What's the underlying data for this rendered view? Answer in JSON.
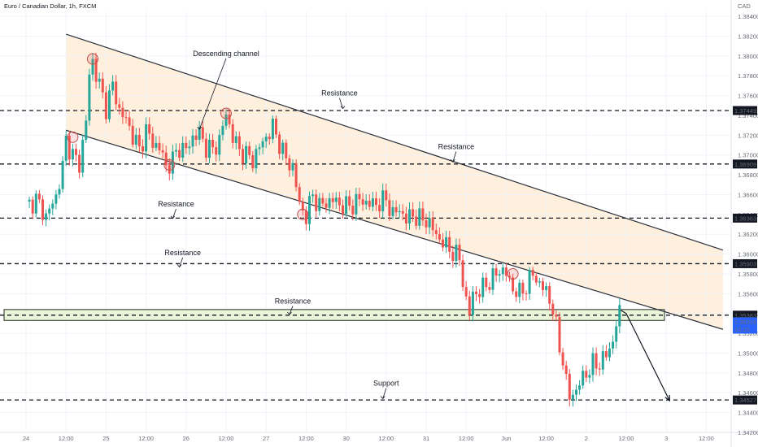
{
  "window": {
    "title": "Euro / Canadian Dollar, 1h, FXCM",
    "currency": "CAD"
  },
  "colors": {
    "up": "#26a69a",
    "down": "#ef5350",
    "channel_fill": "#fdebd0",
    "zone_fill": "#eaf4d9",
    "zone_stroke": "#1f2a1f",
    "last_price_bg": "#2962ff",
    "level_label_bg": "#131722"
  },
  "chart_data": {
    "type": "candlestick",
    "title": "Euro / Canadian Dollar, 1h, FXCM",
    "ylim": [
      1.342,
      1.3845
    ],
    "y_ticks": [
      1.342,
      1.344,
      1.346,
      1.348,
      1.35,
      1.352,
      1.354,
      1.356,
      1.358,
      1.36,
      1.362,
      1.364,
      1.366,
      1.368,
      1.37,
      1.372,
      1.374,
      1.376,
      1.378,
      1.38,
      1.382,
      1.384
    ],
    "y_tick_labels": [
      "1.34200",
      "1.34400",
      "1.34600",
      "1.34800",
      "1.35000",
      "1.35200",
      "1.35400",
      "1.35600",
      "1.35800",
      "1.36000",
      "1.36200",
      "1.36400",
      "1.36600",
      "1.36800",
      "1.37000",
      "1.37200",
      "1.37400",
      "1.37600",
      "1.37800",
      "1.38000",
      "1.38200",
      "1.38400"
    ],
    "x_ticks": [
      {
        "t": 0,
        "label": "24"
      },
      {
        "t": 12,
        "label": "12:00"
      },
      {
        "t": 24,
        "label": "25"
      },
      {
        "t": 36,
        "label": "12:00"
      },
      {
        "t": 48,
        "label": "26"
      },
      {
        "t": 60,
        "label": "12:00"
      },
      {
        "t": 72,
        "label": "27"
      },
      {
        "t": 84,
        "label": "12:00"
      },
      {
        "t": 96,
        "label": "30"
      },
      {
        "t": 108,
        "label": "12:00"
      },
      {
        "t": 120,
        "label": "31"
      },
      {
        "t": 132,
        "label": "12:00"
      },
      {
        "t": 144,
        "label": "Jun"
      },
      {
        "t": 156,
        "label": "12:00"
      },
      {
        "t": 168,
        "label": "2"
      },
      {
        "t": 180,
        "label": "12:00"
      },
      {
        "t": 192,
        "label": "3"
      },
      {
        "t": 204,
        "label": "12:00"
      }
    ],
    "price_path": [
      [
        0,
        1.3648
      ],
      [
        3,
        1.3655
      ],
      [
        6,
        1.3638
      ],
      [
        9,
        1.3658
      ],
      [
        11,
        1.3688
      ],
      [
        12,
        1.3715
      ],
      [
        14,
        1.37
      ],
      [
        16,
        1.369
      ],
      [
        18,
        1.3735
      ],
      [
        19,
        1.378
      ],
      [
        20,
        1.3795
      ],
      [
        22,
        1.377
      ],
      [
        24,
        1.3748
      ],
      [
        26,
        1.377
      ],
      [
        28,
        1.3745
      ],
      [
        30,
        1.3735
      ],
      [
        32,
        1.372
      ],
      [
        34,
        1.3705
      ],
      [
        36,
        1.3725
      ],
      [
        38,
        1.3712
      ],
      [
        40,
        1.3708
      ],
      [
        42,
        1.3688
      ],
      [
        44,
        1.3695
      ],
      [
        46,
        1.3708
      ],
      [
        48,
        1.3705
      ],
      [
        50,
        1.3718
      ],
      [
        52,
        1.3722
      ],
      [
        54,
        1.3708
      ],
      [
        56,
        1.3705
      ],
      [
        58,
        1.3715
      ],
      [
        60,
        1.3742
      ],
      [
        62,
        1.3718
      ],
      [
        64,
        1.3705
      ],
      [
        66,
        1.37
      ],
      [
        68,
        1.3695
      ],
      [
        70,
        1.3708
      ],
      [
        72,
        1.3718
      ],
      [
        74,
        1.3728
      ],
      [
        76,
        1.3712
      ],
      [
        78,
        1.3695
      ],
      [
        80,
        1.3688
      ],
      [
        82,
        1.365
      ],
      [
        84,
        1.3638
      ],
      [
        86,
        1.366
      ],
      [
        88,
        1.3648
      ],
      [
        90,
        1.3652
      ],
      [
        92,
        1.3655
      ],
      [
        94,
        1.365
      ],
      [
        96,
        1.3648
      ],
      [
        98,
        1.365
      ],
      [
        100,
        1.3655
      ],
      [
        102,
        1.3652
      ],
      [
        104,
        1.365
      ],
      [
        106,
        1.3652
      ],
      [
        108,
        1.3655
      ],
      [
        110,
        1.364
      ],
      [
        112,
        1.3645
      ],
      [
        114,
        1.3635
      ],
      [
        116,
        1.364
      ],
      [
        118,
        1.3635
      ],
      [
        120,
        1.3635
      ],
      [
        122,
        1.3625
      ],
      [
        124,
        1.3615
      ],
      [
        126,
        1.3608
      ],
      [
        128,
        1.3602
      ],
      [
        130,
        1.3595
      ],
      [
        132,
        1.3552
      ],
      [
        133,
        1.354
      ],
      [
        134,
        1.356
      ],
      [
        136,
        1.3562
      ],
      [
        138,
        1.357
      ],
      [
        140,
        1.3575
      ],
      [
        142,
        1.3585
      ],
      [
        144,
        1.358
      ],
      [
        146,
        1.3565
      ],
      [
        148,
        1.356
      ],
      [
        150,
        1.3568
      ],
      [
        152,
        1.358
      ],
      [
        154,
        1.357
      ],
      [
        156,
        1.3562
      ],
      [
        158,
        1.3545
      ],
      [
        160,
        1.3505
      ],
      [
        161,
        1.3495
      ],
      [
        162,
        1.347
      ],
      [
        163,
        1.3455
      ],
      [
        164,
        1.346
      ],
      [
        165,
        1.3462
      ],
      [
        166,
        1.347
      ],
      [
        168,
        1.348
      ],
      [
        170,
        1.3488
      ],
      [
        172,
        1.349
      ],
      [
        174,
        1.3498
      ],
      [
        176,
        1.3512
      ],
      [
        177,
        1.353
      ],
      [
        178,
        1.354
      ]
    ],
    "ohlc_note": "Candles are derived from price_path (open = previous close).",
    "channel_upper": [
      [
        12,
        1.3822
      ],
      [
        209,
        1.3604
      ]
    ],
    "channel_lower": [
      [
        12,
        1.3725
      ],
      [
        209,
        1.3524
      ]
    ],
    "horizontal_levels": [
      1.37449,
      1.36909,
      1.36363,
      1.35903,
      1.35383,
      1.34527
    ],
    "level_labels": [
      "1.37449",
      "1.36909",
      "1.36363",
      "1.35903",
      "1.35383",
      "1.34527"
    ],
    "zone": [
      1.3533,
      1.3544
    ],
    "last_price": 1.35316,
    "last_price_label": "1.35316",
    "countdown_label": "13:15",
    "projection": [
      [
        178,
        1.3544
      ],
      [
        180,
        1.354
      ],
      [
        193,
        1.3452
      ]
    ],
    "touch_points": [
      [
        20,
        1.3797
      ],
      [
        14,
        1.3718
      ],
      [
        43,
        1.369
      ],
      [
        60,
        1.3742
      ],
      [
        83,
        1.364
      ],
      [
        146,
        1.358
      ]
    ],
    "annotations": [
      {
        "text": "Descending channel",
        "t": 60,
        "p": 1.38,
        "pt": [
          52,
          1.3726
        ]
      },
      {
        "text": "Resistance",
        "t": 94,
        "p": 1.376,
        "pt": [
          95,
          1.3747
        ]
      },
      {
        "text": "Resistance",
        "t": 129,
        "p": 1.3706,
        "pt": [
          128,
          1.3693
        ]
      },
      {
        "text": "Resistance",
        "t": 45,
        "p": 1.3648,
        "pt": [
          44,
          1.3636
        ]
      },
      {
        "text": "Resistance",
        "t": 47,
        "p": 1.3599,
        "pt": [
          46,
          1.3587
        ]
      },
      {
        "text": "Resistance",
        "t": 80,
        "p": 1.355,
        "pt": [
          79,
          1.3539
        ]
      },
      {
        "text": "Support",
        "t": 108,
        "p": 1.3467,
        "pt": [
          107,
          1.3454
        ]
      }
    ]
  }
}
